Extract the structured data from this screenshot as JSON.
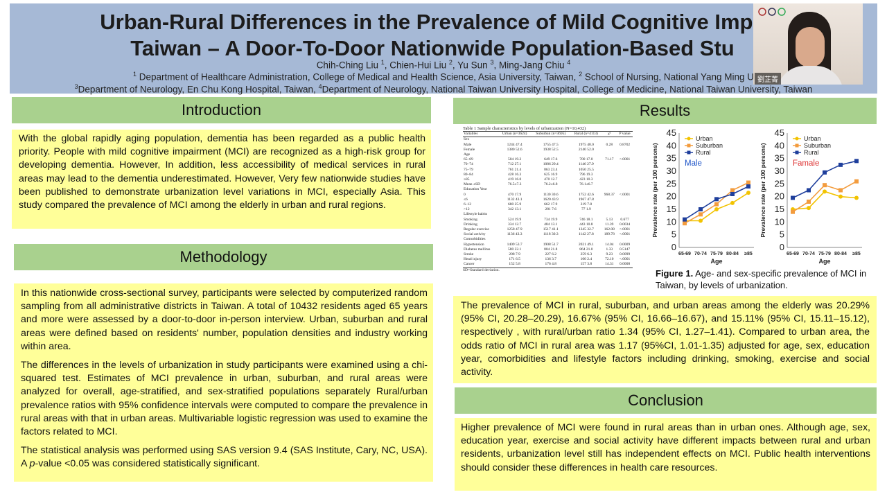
{
  "header": {
    "title_line1": "Urban-Rural Differences in the Prevalence of Mild Cognitive Impa",
    "title_line2": "Taiwan – A Door-To-Door Nationwide Population-Based Stu",
    "authors": [
      {
        "name": "Chih-Ching Liu",
        "sup": "1"
      },
      {
        "name": "Chien-Hui Liu",
        "sup": "2"
      },
      {
        "name": "Yu Sun",
        "sup": "3"
      },
      {
        "name": "Ming-Jang Chiu",
        "sup": "4"
      }
    ],
    "affil1_sup": "1",
    "affil1": " Department of Healthcare Administration, College of Medical and Health Science, Asia University, Taiwan,",
    "affil1b_sup": "2",
    "affil1b": " School of Nursing, National Yang Ming U",
    "affil2_sup": "3",
    "affil2": "Department of Neurology, En Chu Kong Hospital, Taiwan,",
    "affil2b_sup": "4",
    "affil2b": "Department of Neurology, National Taiwan University Hospital, College of Medicine, National Taiwan University, Taiwan"
  },
  "video": {
    "name": "劉芷菁"
  },
  "introduction": {
    "heading": "Introduction",
    "text": "With the global rapidly aging population, dementia has been regarded as a public health priority. People with mild cognitive impairment (MCI) are recognized as a high-risk group for developing dementia. However, In addition, less accessibility of medical services in rural areas may lead to the dementia underestimated. However, Very few nationwide studies have been published to demonstrate urbanization level variations in MCI, especially Asia. This study compared the prevalence of MCI among the elderly in urban and rural regions."
  },
  "methodology": {
    "heading": "Methodology",
    "p1": "In this nationwide cross-sectional survey, participants were selected by computerized random sampling from all administrative districts in Taiwan. A total of 10432 residents aged 65 years and more were assessed by a door-to-door in-person interview. Urban, suburban and rural areas were defined based on residents' number, population densities and industry working within area.",
    "p2": "The differences in the levels of urbanization in study participants were examined using a chi-squared test. Estimates of MCI prevalence in urban, suburban, and rural areas were analyzed for overall, age-stratified, and sex-stratified populations separately Rural/urban prevalence ratios with 95% confidence intervals were computed to compare the prevalence in rural areas with that in urban areas. Multivariable logistic regression was used to examine the factors related to MCI.",
    "p3_before": " The statistical analysis was performed using SAS version 9.4 (SAS Institute, Cary, NC, USA). A ",
    "p3_italic": "p",
    "p3_after": "-value <0.05 was considered statistically significant."
  },
  "results": {
    "heading": "Results",
    "table_caption": "Table 1 Sample characteristics by levels of urbanization (N=10,432)",
    "table_rows": [
      [
        "Variables",
        "Urban (n=3624)",
        "Suburban (n=3695)",
        "Rural (n=4113)",
        "χ²",
        "P value"
      ],
      [
        "Sex",
        "",
        "",
        "",
        "",
        ""
      ],
      [
        "Male",
        "1244 47.4",
        "1755 47.5",
        "1975 48.0",
        "0.28",
        "0.8702"
      ],
      [
        "Female",
        "1380 52.6",
        "1938 52.5",
        "2140 52.0",
        "",
        ""
      ],
      [
        "Age",
        "",
        "",
        "",
        "",
        ""
      ],
      [
        "65–69",
        "504 19.2",
        "649 17.6",
        "700 17.0",
        "71.17",
        "<.0001"
      ],
      [
        "70–74",
        "712 27.1",
        "1086 29.4",
        "1146 27.9",
        "",
        ""
      ],
      [
        "75–79",
        "761 21.4",
        "863 23.4",
        "1050 25.5",
        "",
        ""
      ],
      [
        "80–84",
        "428 16.3",
        "625 16.9",
        "796 19.3",
        "",
        ""
      ],
      [
        "≥85",
        "419 16.0",
        "470 12.7",
        "423 10.3",
        "",
        ""
      ],
      [
        "Mean ±SD",
        "76.5±7.3",
        "76.2±6.8",
        "76.1±6.7",
        "",
        ""
      ],
      [
        "Education Year",
        "",
        "",
        "",
        "",
        ""
      ],
      [
        "0",
        "470 17.9",
        "1130 30.6",
        "1752 42.6",
        "968.37",
        "<.0001"
      ],
      [
        "≤6",
        "1132 43.1",
        "1620 43.9",
        "1967 47.8",
        "",
        ""
      ],
      [
        "6–12",
        "680 25.9",
        "662 17.9",
        "319 7.8",
        "",
        ""
      ],
      [
        ">12",
        "342 13.1",
        "281 7.6",
        "77 1.9",
        "",
        ""
      ],
      [
        "Lifestyle habits",
        "",
        "",
        "",
        "",
        ""
      ],
      [
        "Smoking",
        "524 19.9",
        "734 19.9",
        "746 18.1",
        "5.13",
        "0.677"
      ],
      [
        "Drinking",
        "334 12.7",
        "484 13.1",
        "443 10.8",
        "11.39",
        "0.0034"
      ],
      [
        "Regular exercise",
        "1258 47.9",
        "1517 41.1",
        "1345 32.7",
        "162.08",
        "<.0001"
      ],
      [
        "Social activity",
        "1136 43.3",
        "1118 30.3",
        "1142 27.8",
        "189.78",
        "<.0001"
      ],
      [
        "Comorbidities",
        "",
        "",
        "",
        "",
        ""
      ],
      [
        "Hypertension",
        "1409 53.7",
        "1908 51.7",
        "2021 49.1",
        "14.04",
        "0.0009"
      ],
      [
        "Diabetes mellitus",
        "580 22.1",
        "804 21.8",
        "864 21.0",
        "1.33",
        "0.5147"
      ],
      [
        "Stroke",
        "208 7.9",
        "227 6.2",
        "259 6.3",
        "9.23",
        "0.0099"
      ],
      [
        "Head injury",
        "171 6.5",
        "136 3.7",
        "100 2.4",
        "72.10",
        "<.0001"
      ],
      [
        "Cancer",
        "152 5.8",
        "176 4.8",
        "157 3.8",
        "14.31",
        "0.0008"
      ]
    ],
    "table_footnote": "SD=Standard deviation.",
    "figure_caption_bold": "Figure 1.",
    "figure_caption": " Age- and sex-specific prevalence of MCI in Taiwan, by levels of urbanization.",
    "text": "The prevalence of MCI in rural, suburban, and urban areas among the elderly was 20.29% (95% CI, 20.28–20.29), 16.67% (95% CI, 16.66–16.67), and 15.11% (95% CI, 15.11–15.12), respectively , with rural/urban ratio 1.34 (95% CI, 1.27–1.41). Compared to urban area, the odds ratio of MCI in rural area was 1.17 (95%CI, 1.01-1.35) adjusted for age, sex, education year, comorbidities and lifestyle factors including drinking, smoking, exercise and social activity."
  },
  "conclusion": {
    "heading": "Conclusion",
    "text": "Higher prevalence of MCI were found in rural areas than in urban ones. Although age, sex, education year, exercise and social activity have different impacts between rural and urban residents, urbanization level still has independent effects on MCI. Public health interventions should consider these differences in health care resources."
  },
  "colors": {
    "urban": "#f2c300",
    "suburban": "#f39c3e",
    "rural": "#1f3f9c",
    "section_head": "#a9d18e",
    "box": "#ffff99",
    "header": "#a6b9d6"
  },
  "chart_data": [
    {
      "type": "line",
      "title": "",
      "panel_label": "Male",
      "x": [
        "65-69",
        "70-74",
        "75-79",
        "80-84",
        "≥85"
      ],
      "xlabel": "Age",
      "ylabel": "Prevalence rate (per 100 persons)",
      "ylim": [
        0,
        45
      ],
      "yticks": [
        0,
        5,
        10,
        15,
        20,
        25,
        30,
        35,
        40,
        45
      ],
      "legend_position": "top-left",
      "series": [
        {
          "name": "Urban",
          "values": [
            10.5,
            10.5,
            15,
            17.5,
            21.5
          ]
        },
        {
          "name": "Suburban",
          "values": [
            9.5,
            13,
            17,
            22.5,
            25.5
          ]
        },
        {
          "name": "Rural",
          "values": [
            11,
            15,
            19,
            21,
            24
          ]
        }
      ]
    },
    {
      "type": "line",
      "title": "",
      "panel_label": "Famale",
      "x": [
        "65-69",
        "70-74",
        "75-79",
        "80-84",
        "≥85"
      ],
      "xlabel": "Age",
      "ylabel": "Prevalence rate (per 100 persons)",
      "ylim": [
        0,
        45
      ],
      "yticks": [
        0,
        5,
        10,
        15,
        20,
        25,
        30,
        35,
        40,
        45
      ],
      "legend_position": "top-left",
      "series": [
        {
          "name": "Urban",
          "values": [
            15,
            15.5,
            22,
            20,
            19.5
          ]
        },
        {
          "name": "Suburban",
          "values": [
            14,
            18,
            24.5,
            22.5,
            26
          ]
        },
        {
          "name": "Rural",
          "values": [
            19.5,
            22.5,
            29.5,
            32.5,
            34
          ]
        }
      ]
    }
  ]
}
